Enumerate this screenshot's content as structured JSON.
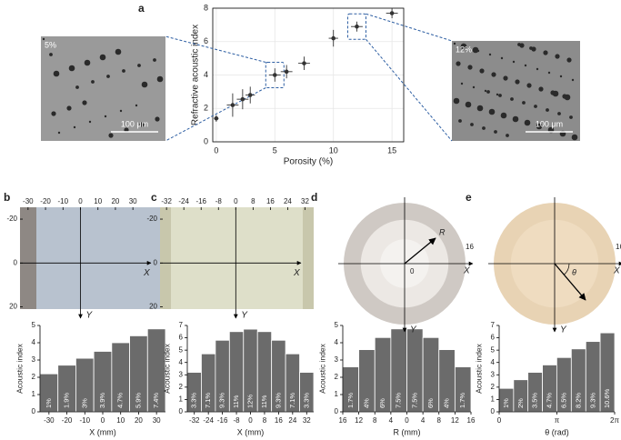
{
  "chart_data": [
    {
      "type": "scatter",
      "label": "a",
      "xlabel": "Porosity (%)",
      "ylabel": "Refractive acoustic index",
      "x": [
        0,
        1.4,
        2.25,
        2.9,
        5,
        6,
        7.5,
        10,
        12,
        15
      ],
      "values": [
        1.4,
        2.2,
        2.55,
        2.8,
        4.0,
        4.2,
        4.7,
        6.2,
        6.9,
        7.7
      ],
      "xerr": [
        0.2,
        0.5,
        0.5,
        0.4,
        0.5,
        0.5,
        0.5,
        0.4,
        0.5,
        0.5
      ],
      "yerr": [
        0.2,
        0.7,
        0.6,
        0.5,
        0.4,
        0.4,
        0.4,
        0.5,
        0.3,
        0.3
      ],
      "xlim": [
        -0.3,
        16
      ],
      "ylim": [
        0,
        8
      ],
      "xticks": [
        0,
        5,
        10,
        15
      ],
      "yticks": [
        0,
        2,
        4,
        6,
        8
      ],
      "grid": true,
      "color": "#333333",
      "insets": [
        {
          "label": "5%",
          "scale": "100 μm"
        },
        {
          "label": "12%",
          "scale": "100 μm"
        }
      ]
    },
    {
      "type": "bar",
      "label": "b",
      "xlabel": "X (mm)",
      "ylabel": "Acoustic index",
      "color": "#6b6b6b",
      "x": [
        -30,
        -20,
        -10,
        0,
        10,
        20,
        30
      ],
      "values": [
        2.2,
        2.7,
        3.1,
        3.5,
        4.0,
        4.4,
        4.8
      ],
      "value_labels": [
        "1%",
        "1.9%",
        "3%",
        "3.9%",
        "4.7%",
        "5.9%",
        "7.4%"
      ],
      "xlim": [
        -35,
        35
      ],
      "ylim": [
        0,
        5
      ],
      "xticks": [
        -30,
        -20,
        -10,
        0,
        10,
        20,
        30
      ],
      "yticks": [
        0,
        1,
        2,
        3,
        4,
        5
      ],
      "image": {
        "kind": "rect",
        "xlim": [
          -34.6,
          47.6
        ],
        "ylim": [
          -25.4,
          21
        ],
        "xticks": [
          -30,
          -20,
          -10,
          0,
          10,
          20,
          30
        ],
        "yticks": [
          -20,
          0,
          20
        ],
        "xlabel": "X",
        "ylabel": "Y"
      }
    },
    {
      "type": "bar",
      "label": "c",
      "xlabel": "X (mm)",
      "ylabel": "Acoustic index",
      "color": "#6b6b6b",
      "x": [
        -32,
        -24,
        -16,
        -8,
        0,
        8,
        16,
        24,
        32
      ],
      "values": [
        3.2,
        4.7,
        5.8,
        6.5,
        6.7,
        6.5,
        5.8,
        4.7,
        3.2
      ],
      "value_labels": [
        "3.3%",
        "7.1%",
        "9.3%",
        "11%",
        "12%",
        "11%",
        "9.3%",
        "7.1%",
        "3.3%"
      ],
      "xlim": [
        -36,
        36
      ],
      "ylim": [
        0,
        7
      ],
      "xticks": [
        -32,
        -24,
        -16,
        -8,
        0,
        8,
        16,
        24,
        32
      ],
      "yticks": [
        0,
        1,
        2,
        3,
        4,
        5,
        6,
        7
      ],
      "image": {
        "kind": "rect",
        "xlim": [
          -35,
          36
        ],
        "ylim": [
          -25.4,
          21
        ],
        "xticks": [
          -32,
          -24,
          -16,
          -8,
          0,
          8,
          16,
          24,
          32
        ],
        "yticks": [
          -20,
          0,
          20
        ],
        "xlabel": "X",
        "ylabel": "Y"
      }
    },
    {
      "type": "bar",
      "label": "d",
      "xlabel": "R (mm)",
      "ylabel": "Acoustic index",
      "color": "#6b6b6b",
      "x": [
        -14,
        -10,
        -6,
        -2,
        2,
        6,
        10,
        14
      ],
      "values": [
        2.6,
        3.6,
        4.3,
        4.8,
        4.8,
        4.3,
        3.6,
        2.6
      ],
      "value_labels": [
        "1.7%",
        "4%",
        "6%",
        "7.5%",
        "7.5%",
        "6%",
        "4%",
        "1.7%"
      ],
      "xlim": [
        -16,
        16
      ],
      "ylim": [
        0,
        5
      ],
      "xticks": [
        {
          "value": -16,
          "label": "16"
        },
        {
          "value": -12,
          "label": "12"
        },
        {
          "value": -8,
          "label": "8"
        },
        {
          "value": -4,
          "label": "4"
        },
        0,
        4,
        8,
        12,
        16
      ],
      "yticks": [
        0,
        1,
        2,
        3,
        4,
        5
      ],
      "image": {
        "kind": "circle",
        "radius_label": "R",
        "center_label": "0",
        "edge_label": "16",
        "xlabel": "X",
        "ylabel": "Y"
      }
    },
    {
      "type": "bar",
      "label": "e",
      "xlabel": "θ (rad)",
      "ylabel": "Acoustic index",
      "color": "#6b6b6b",
      "x": [
        0.39,
        1.18,
        1.96,
        2.75,
        3.53,
        4.32,
        5.11,
        5.89
      ],
      "values": [
        1.9,
        2.6,
        3.2,
        3.8,
        4.4,
        5.1,
        5.7,
        6.4
      ],
      "value_labels": [
        "1%",
        "2%",
        "3.5%",
        "4.7%",
        "6.5%",
        "8.2%",
        "9.3%",
        "10.6%"
      ],
      "xlim": [
        0,
        6.2832
      ],
      "ylim": [
        0,
        7
      ],
      "xticks": [
        0,
        {
          "value": 3.1416,
          "label": "π"
        },
        {
          "value": 6.2832,
          "label": "2π"
        }
      ],
      "yticks": [
        0,
        1,
        2,
        3,
        4,
        5,
        6,
        7
      ],
      "image": {
        "kind": "circle",
        "angle_label": "θ",
        "edge_label": "16",
        "xlabel": "X",
        "ylabel": "Y"
      }
    }
  ]
}
